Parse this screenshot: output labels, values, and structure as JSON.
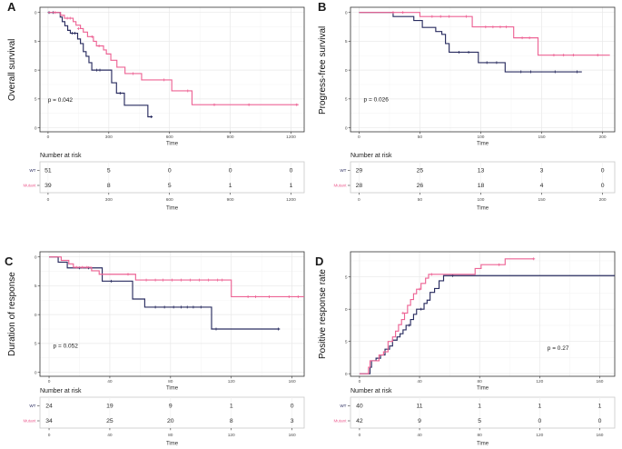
{
  "colors": {
    "wt": "#2a2d60",
    "mutant": "#ed6495",
    "grid_major": "#e8e8e8",
    "grid_minor": "#f4f4f4",
    "panel_border": "#333333",
    "risk_border": "#c9c9c9",
    "risk_grid": "#efefef",
    "tick_label": "#4d4d4d",
    "axis_label": "#333333",
    "text": "#1a1a1a"
  },
  "chart_data": [
    {
      "type": "line",
      "subtype": "kaplan-meier-step",
      "letter": "A",
      "ylabel": "Overall survival",
      "xlabel": "Time",
      "pvalue": {
        "text": "p = 0.042",
        "fx": 0.03,
        "fy": 0.24
      },
      "xticks": [
        0,
        300,
        600,
        900,
        1200
      ],
      "xdomain": [
        -40,
        1265
      ],
      "yticks": [
        0,
        0.25,
        0.5,
        0.75,
        1
      ],
      "ytick_labels": [
        "0.00",
        "0.25",
        "0.50",
        "0.75",
        "1.00"
      ],
      "ydomain": [
        -0.035,
        1.045
      ],
      "legend_position": "none",
      "grid": true,
      "series": [
        {
          "name": "WT",
          "color_key": "wt",
          "points": [
            [
              0,
              1
            ],
            [
              60,
              0.96
            ],
            [
              70,
              0.92
            ],
            [
              83,
              0.885
            ],
            [
              97,
              0.845
            ],
            [
              110,
              0.82
            ],
            [
              146,
              0.77
            ],
            [
              160,
              0.73
            ],
            [
              174,
              0.66
            ],
            [
              188,
              0.62
            ],
            [
              202,
              0.565
            ],
            [
              216,
              0.5
            ],
            [
              314,
              0.39
            ],
            [
              338,
              0.3
            ],
            [
              377,
              0.195
            ],
            [
              493,
              0.095
            ]
          ],
          "end": 516,
          "censors": [
            [
              5,
              1
            ],
            [
              25,
              1
            ],
            [
              120,
              0.82
            ],
            [
              133,
              0.82
            ],
            [
              240,
              0.5
            ],
            [
              256,
              0.5
            ],
            [
              356,
              0.3
            ],
            [
              510,
              0.095
            ]
          ]
        },
        {
          "name": "Mutant",
          "color_key": "mutant",
          "points": [
            [
              0,
              1
            ],
            [
              62,
              0.975
            ],
            [
              81,
              0.95
            ],
            [
              124,
              0.92
            ],
            [
              138,
              0.89
            ],
            [
              160,
              0.86
            ],
            [
              174,
              0.83
            ],
            [
              195,
              0.79
            ],
            [
              224,
              0.75
            ],
            [
              239,
              0.71
            ],
            [
              274,
              0.675
            ],
            [
              288,
              0.64
            ],
            [
              310,
              0.585
            ],
            [
              340,
              0.525
            ],
            [
              380,
              0.47
            ],
            [
              462,
              0.415
            ],
            [
              611,
              0.32
            ],
            [
              711,
              0.2
            ]
          ],
          "end": 1237,
          "censors": [
            [
              35,
              1
            ],
            [
              95,
              0.95
            ],
            [
              109,
              0.95
            ],
            [
              150,
              0.86
            ],
            [
              217,
              0.79
            ],
            [
              252,
              0.71
            ],
            [
              420,
              0.47
            ],
            [
              573,
              0.415
            ],
            [
              690,
              0.32
            ],
            [
              821,
              0.2
            ],
            [
              992,
              0.2
            ],
            [
              1228,
              0.2
            ]
          ]
        }
      ],
      "risk": {
        "header": "Number at risk",
        "time_label": "Time",
        "rows": [
          {
            "label": "WT",
            "color_key": "wt",
            "values": [
              "51",
              "5",
              "0",
              "0",
              "0"
            ]
          },
          {
            "label": "Mutant",
            "color_key": "mutant",
            "values": [
              "39",
              "8",
              "5",
              "1",
              "1"
            ]
          }
        ]
      }
    },
    {
      "type": "line",
      "subtype": "kaplan-meier-step",
      "letter": "B",
      "ylabel": "Progress-free survival",
      "xlabel": "Time",
      "pvalue": {
        "text": "p = 0.026",
        "fx": 0.05,
        "fy": 0.245
      },
      "xticks": [
        0,
        50,
        100,
        150,
        200
      ],
      "xdomain": [
        -7,
        210
      ],
      "yticks": [
        0,
        0.25,
        0.5,
        0.75,
        1
      ],
      "ytick_labels": [
        "0.00",
        "0.25",
        "0.50",
        "0.75",
        "1.00"
      ],
      "ydomain": [
        -0.035,
        1.045
      ],
      "legend_position": "none",
      "grid": true,
      "series": [
        {
          "name": "WT",
          "color_key": "wt",
          "points": [
            [
              0,
              1
            ],
            [
              28,
              0.965
            ],
            [
              45,
              0.93
            ],
            [
              52,
              0.87
            ],
            [
              63,
              0.835
            ],
            [
              68,
              0.81
            ],
            [
              71,
              0.73
            ],
            [
              74,
              0.655
            ],
            [
              98,
              0.565
            ],
            [
              120,
              0.485
            ]
          ],
          "end": 183,
          "censors": [
            [
              82,
              0.655
            ],
            [
              90,
              0.655
            ],
            [
              105,
              0.565
            ],
            [
              113,
              0.565
            ],
            [
              133,
              0.485
            ],
            [
              141,
              0.485
            ],
            [
              161,
              0.485
            ],
            [
              179,
              0.485
            ]
          ]
        },
        {
          "name": "Mutant",
          "color_key": "mutant",
          "points": [
            [
              0,
              1
            ],
            [
              50,
              0.965
            ],
            [
              93,
              0.875
            ],
            [
              127,
              0.78
            ],
            [
              147,
              0.63
            ]
          ],
          "end": 206,
          "censors": [
            [
              28,
              1
            ],
            [
              36,
              1
            ],
            [
              60,
              0.965
            ],
            [
              67,
              0.965
            ],
            [
              74,
              0.965
            ],
            [
              88,
              0.965
            ],
            [
              104,
              0.875
            ],
            [
              110,
              0.875
            ],
            [
              116,
              0.875
            ],
            [
              121,
              0.875
            ],
            [
              134,
              0.78
            ],
            [
              140,
              0.78
            ],
            [
              160,
              0.63
            ],
            [
              168,
              0.63
            ],
            [
              176,
              0.63
            ],
            [
              196,
              0.63
            ]
          ]
        }
      ],
      "risk": {
        "header": "Number at risk",
        "time_label": "Time",
        "rows": [
          {
            "label": "WT",
            "color_key": "wt",
            "values": [
              "29",
              "25",
              "13",
              "3",
              "0"
            ]
          },
          {
            "label": "Mutant",
            "color_key": "mutant",
            "values": [
              "28",
              "26",
              "18",
              "4",
              "0"
            ]
          }
        ]
      }
    },
    {
      "type": "line",
      "subtype": "kaplan-meier-step",
      "letter": "C",
      "ylabel": "Duration of response",
      "xlabel": "Time",
      "pvalue": {
        "text": "p = 0.052",
        "fx": 0.05,
        "fy": 0.23
      },
      "xticks": [
        0,
        40,
        80,
        120,
        160
      ],
      "xdomain": [
        -6,
        168
      ],
      "yticks": [
        0,
        0.25,
        0.5,
        0.75,
        1
      ],
      "ytick_labels": [
        "0.00",
        "0.25",
        "0.50",
        "0.75",
        "1.00"
      ],
      "ydomain": [
        -0.035,
        1.045
      ],
      "legend_position": "none",
      "grid": true,
      "series": [
        {
          "name": "WT",
          "color_key": "wt",
          "points": [
            [
              0,
              1
            ],
            [
              6,
              0.955
            ],
            [
              12,
              0.905
            ],
            [
              35,
              0.79
            ],
            [
              55,
              0.635
            ],
            [
              63,
              0.565
            ],
            [
              107,
              0.375
            ]
          ],
          "end": 152,
          "censors": [
            [
              20,
              0.905
            ],
            [
              26,
              0.905
            ],
            [
              41,
              0.79
            ],
            [
              70,
              0.565
            ],
            [
              76,
              0.565
            ],
            [
              82,
              0.565
            ],
            [
              87,
              0.565
            ],
            [
              91,
              0.565
            ],
            [
              95,
              0.565
            ],
            [
              100,
              0.565
            ],
            [
              110,
              0.375
            ],
            [
              151,
              0.375
            ]
          ]
        },
        {
          "name": "Mutant",
          "color_key": "mutant",
          "points": [
            [
              0,
              1
            ],
            [
              8,
              0.97
            ],
            [
              13,
              0.94
            ],
            [
              16,
              0.91
            ],
            [
              28,
              0.88
            ],
            [
              33,
              0.85
            ],
            [
              57,
              0.8
            ],
            [
              120,
              0.655
            ]
          ],
          "end": 168,
          "censors": [
            [
              18,
              0.91
            ],
            [
              22,
              0.91
            ],
            [
              25,
              0.91
            ],
            [
              52,
              0.85
            ],
            [
              64,
              0.8
            ],
            [
              70,
              0.8
            ],
            [
              75,
              0.8
            ],
            [
              81,
              0.8
            ],
            [
              87,
              0.8
            ],
            [
              93,
              0.8
            ],
            [
              99,
              0.8
            ],
            [
              105,
              0.8
            ],
            [
              111,
              0.8
            ],
            [
              114,
              0.8
            ],
            [
              131,
              0.655
            ],
            [
              136,
              0.655
            ],
            [
              145,
              0.655
            ],
            [
              158,
              0.655
            ],
            [
              164,
              0.655
            ]
          ]
        }
      ],
      "risk": {
        "header": "Number at risk",
        "time_label": "Time",
        "rows": [
          {
            "label": "WT",
            "color_key": "wt",
            "values": [
              "24",
              "19",
              "9",
              "1",
              "0"
            ]
          },
          {
            "label": "Mutant",
            "color_key": "mutant",
            "values": [
              "34",
              "25",
              "20",
              "8",
              "3"
            ]
          }
        ]
      }
    },
    {
      "type": "line",
      "subtype": "kaplan-meier-step",
      "letter": "D",
      "ylabel": "Positive response rate",
      "xlabel": "Time",
      "pvalue": {
        "text": "p = 0.27",
        "fx": 0.745,
        "fy": 0.21
      },
      "xticks": [
        0,
        40,
        80,
        120,
        160
      ],
      "xdomain": [
        -6,
        170
      ],
      "yticks": [
        0,
        0.25,
        0.5,
        0.75
      ],
      "ytick_labels": [
        "0.00",
        "0.25",
        "0.50",
        "0.75"
      ],
      "ydomain": [
        -0.02,
        0.945
      ],
      "legend_position": "none",
      "grid": true,
      "series": [
        {
          "name": "WT",
          "color_key": "wt",
          "points": [
            [
              0,
              0
            ],
            [
              7,
              0.05
            ],
            [
              8,
              0.1
            ],
            [
              11,
              0.12
            ],
            [
              14,
              0.145
            ],
            [
              17,
              0.19
            ],
            [
              20,
              0.215
            ],
            [
              22,
              0.26
            ],
            [
              25,
              0.285
            ],
            [
              27,
              0.31
            ],
            [
              29,
              0.34
            ],
            [
              31,
              0.375
            ],
            [
              34,
              0.42
            ],
            [
              36,
              0.46
            ],
            [
              38,
              0.5
            ],
            [
              43,
              0.545
            ],
            [
              45,
              0.57
            ],
            [
              47,
              0.63
            ],
            [
              50,
              0.66
            ],
            [
              53,
              0.72
            ],
            [
              56,
              0.76
            ]
          ],
          "end": 170,
          "censors": [
            [
              33,
              0.375
            ],
            [
              41,
              0.5
            ],
            [
              62,
              0.76
            ]
          ]
        },
        {
          "name": "Mutant",
          "color_key": "mutant",
          "points": [
            [
              0,
              0
            ],
            [
              6,
              0.05
            ],
            [
              7,
              0.1
            ],
            [
              13,
              0.145
            ],
            [
              16,
              0.17
            ],
            [
              19,
              0.25
            ],
            [
              22,
              0.285
            ],
            [
              24,
              0.33
            ],
            [
              26,
              0.38
            ],
            [
              28,
              0.42
            ],
            [
              30,
              0.47
            ],
            [
              32,
              0.53
            ],
            [
              34,
              0.575
            ],
            [
              36,
              0.62
            ],
            [
              38,
              0.655
            ],
            [
              41,
              0.7
            ],
            [
              44,
              0.74
            ],
            [
              46,
              0.77
            ],
            [
              77,
              0.815
            ],
            [
              81,
              0.845
            ],
            [
              97,
              0.89
            ]
          ],
          "end": 116,
          "censors": [
            [
              29,
              0.47
            ],
            [
              40,
              0.655
            ],
            [
              48,
              0.77
            ],
            [
              93,
              0.845
            ],
            [
              116,
              0.89
            ]
          ]
        }
      ],
      "risk": {
        "header": "Number at risk",
        "time_label": "Time",
        "rows": [
          {
            "label": "WT",
            "color_key": "wt",
            "values": [
              "40",
              "11",
              "1",
              "1",
              "1"
            ]
          },
          {
            "label": "Mutant",
            "color_key": "mutant",
            "values": [
              "42",
              "9",
              "5",
              "0",
              "0"
            ]
          }
        ]
      }
    }
  ]
}
